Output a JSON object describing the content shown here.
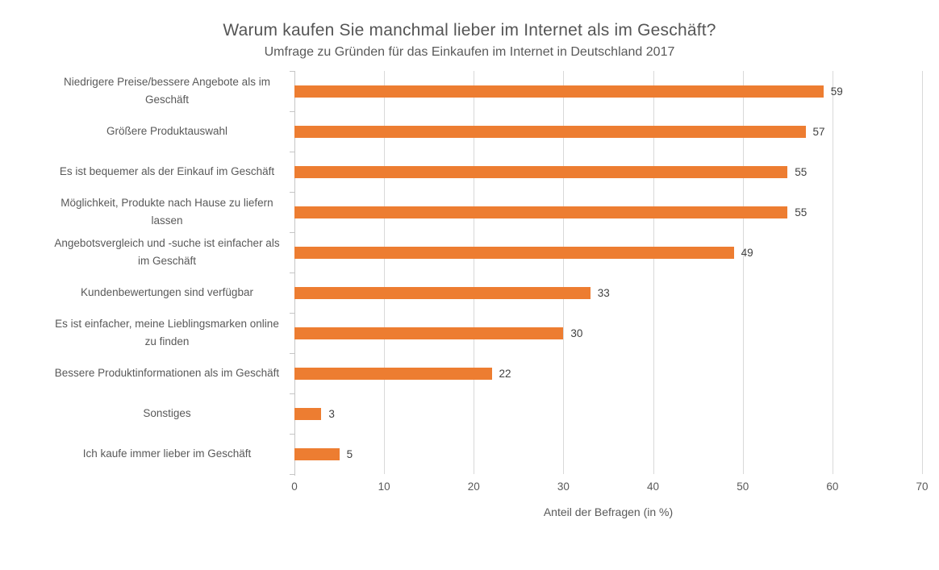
{
  "chart_data": {
    "type": "bar",
    "orientation": "horizontal",
    "title": "Warum kaufen Sie manchmal lieber im Internet als im Geschäft?",
    "subtitle": "Umfrage zu Gründen für das Einkaufen im Internet in Deutschland 2017",
    "xlabel": "Anteil der Befragen (in %)",
    "ylabel": "",
    "xlim": [
      0,
      70
    ],
    "xticks": [
      0,
      10,
      20,
      30,
      40,
      50,
      60,
      70
    ],
    "grid": "vertical-on",
    "legend": "none",
    "data_labels": "shown-at-bar-end",
    "categories": [
      "Niedrigere Preise/bessere Angebote als im Geschäft",
      "Größere Produktauswahl",
      "Es ist bequemer als der Einkauf im Geschäft",
      "Möglichkeit, Produkte nach Hause zu liefern lassen",
      "Angebotsvergleich und -suche ist einfacher als im Geschäft",
      "Kundenbewertungen sind verfügbar",
      "Es ist einfacher, meine Lieblingsmarken online zu finden",
      "Bessere Produktinformationen als im Geschäft",
      "Sonstiges",
      "Ich kaufe immer lieber im Geschäft"
    ],
    "values": [
      59,
      57,
      55,
      55,
      49,
      33,
      30,
      22,
      3,
      5
    ]
  },
  "colors": {
    "bar": "#ED7D31",
    "title_text": "#555555",
    "axis_text": "#595959",
    "data_label_text": "#404040",
    "gridline": "#D9D9D9",
    "axis_line": "#C6C6C6",
    "background": "#FFFFFF"
  }
}
